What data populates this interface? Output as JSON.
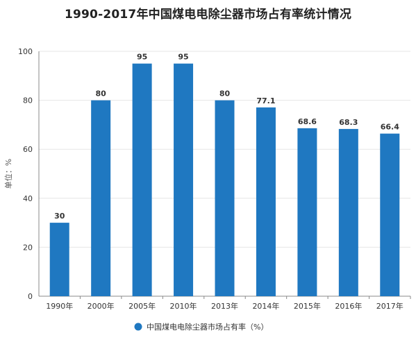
{
  "chart_data": {
    "type": "bar",
    "title": "1990-2017年中国煤电电除尘器市场占有率统计情况",
    "ylabel": "单位：%",
    "xlabel": "",
    "categories": [
      "1990年",
      "2000年",
      "2005年",
      "2010年",
      "2013年",
      "2014年",
      "2015年",
      "2016年",
      "2017年"
    ],
    "series": [
      {
        "name": "中国煤电电除尘器市场占有率（%）",
        "values": [
          30,
          80,
          95,
          95,
          80,
          77.1,
          68.6,
          68.3,
          66.4
        ],
        "labels": [
          "30",
          "80",
          "95",
          "95",
          "80",
          "77.1",
          "68.6",
          "68.3",
          "66.4"
        ]
      }
    ],
    "ylim": [
      0,
      100
    ],
    "yticks": [
      0,
      20,
      40,
      60,
      80,
      100
    ],
    "grid": true,
    "legend_position": "bottom",
    "colors": {
      "bar": "#1f78c1",
      "grid": "#e6e6e6",
      "axis": "#888888"
    }
  }
}
